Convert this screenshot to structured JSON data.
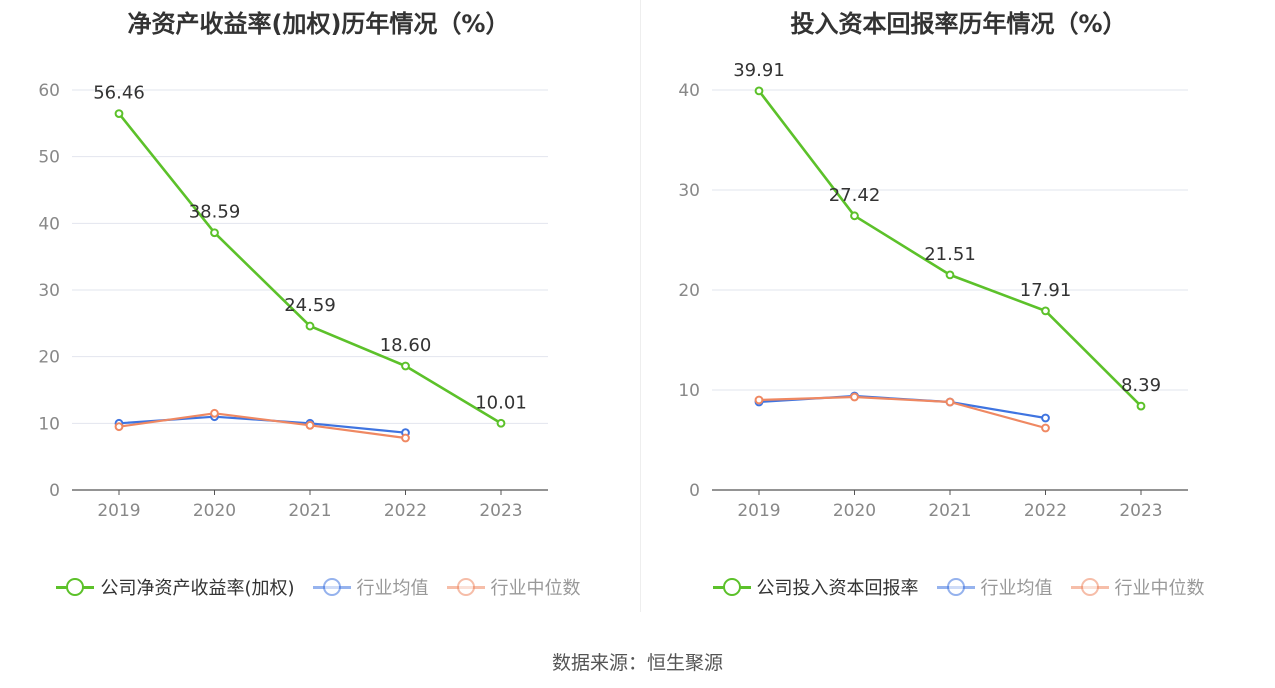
{
  "source_text": "数据来源：恒生聚源",
  "colors": {
    "company": "#5cc12a",
    "avg": "#3f74e0",
    "median": "#ef8862",
    "grid": "#e2e5ee",
    "axis": "#555555",
    "tick": "#888888"
  },
  "chart_data": [
    {
      "type": "line",
      "title": "净资产收益率(加权)历年情况（%）",
      "categories": [
        "2019",
        "2020",
        "2021",
        "2022",
        "2023"
      ],
      "ylim": [
        0,
        60
      ],
      "yticks": [
        0,
        10,
        20,
        30,
        40,
        50,
        60
      ],
      "grid": true,
      "legend_position": "bottom",
      "series": [
        {
          "name": "公司净资产收益率(加权)",
          "color": "#5cc12a",
          "values": [
            56.46,
            38.59,
            24.59,
            18.6,
            10.01
          ],
          "labels": [
            "56.46",
            "38.59",
            "24.59",
            "18.60",
            "10.01"
          ]
        },
        {
          "name": "行业均值",
          "color": "#3f74e0",
          "values": [
            10.0,
            11.0,
            10.0,
            8.6,
            null
          ]
        },
        {
          "name": "行业中位数",
          "color": "#ef8862",
          "values": [
            9.5,
            11.5,
            9.7,
            7.8,
            null
          ]
        }
      ]
    },
    {
      "type": "line",
      "title": "投入资本回报率历年情况（%）",
      "categories": [
        "2019",
        "2020",
        "2021",
        "2022",
        "2023"
      ],
      "ylim": [
        0,
        40
      ],
      "yticks": [
        0,
        10,
        20,
        30,
        40
      ],
      "grid": true,
      "legend_position": "bottom",
      "series": [
        {
          "name": "公司投入资本回报率",
          "color": "#5cc12a",
          "values": [
            39.91,
            27.42,
            21.51,
            17.91,
            8.39
          ],
          "labels": [
            "39.91",
            "27.42",
            "21.51",
            "17.91",
            "8.39"
          ]
        },
        {
          "name": "行业均值",
          "color": "#3f74e0",
          "values": [
            8.8,
            9.4,
            8.8,
            7.2,
            null
          ]
        },
        {
          "name": "行业中位数",
          "color": "#ef8862",
          "values": [
            9.0,
            9.3,
            8.8,
            6.2,
            null
          ]
        }
      ]
    }
  ]
}
